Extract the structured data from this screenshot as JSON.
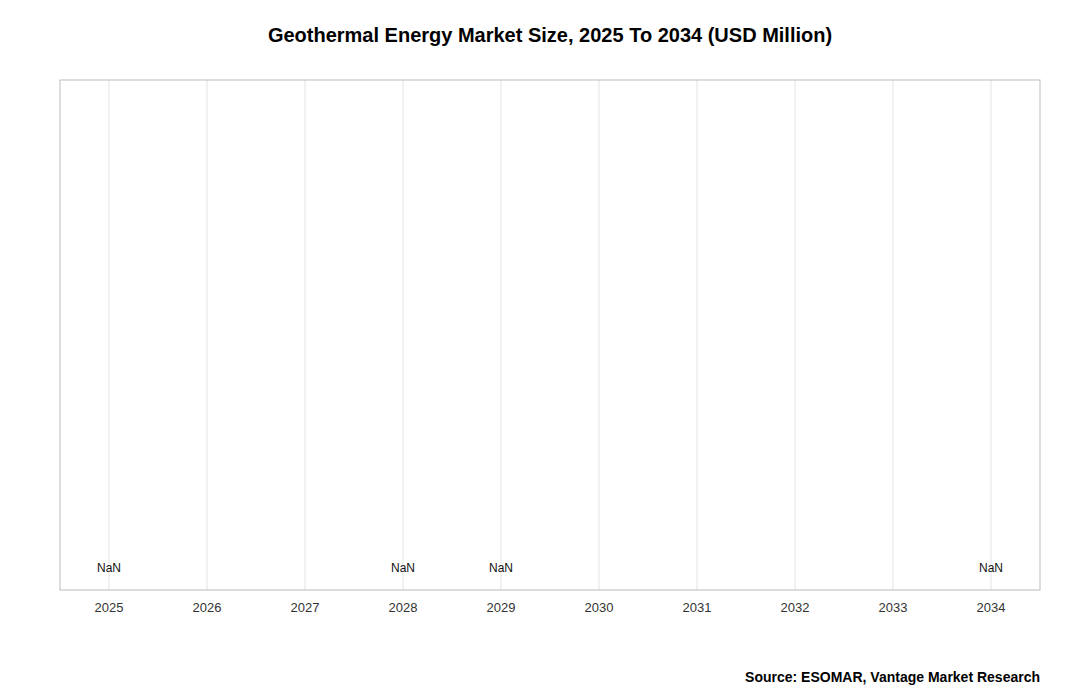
{
  "chart_data": {
    "type": "line",
    "title": "Geothermal Energy Market Size, 2025 To 2034 (USD Million)",
    "source": "Source: ESOMAR, Vantage Market Research",
    "xlim": [
      2024.5,
      2034.5
    ],
    "xticks": [
      2025,
      2026,
      2027,
      2028,
      2029,
      2030,
      2031,
      2032,
      2033,
      2034
    ],
    "ylim": [
      0,
      1
    ],
    "grid": true,
    "tick_labels": "x",
    "annotations": [
      {
        "x": 2025,
        "text": "NaN"
      },
      {
        "x": 2028,
        "text": "NaN"
      },
      {
        "x": 2029,
        "text": "NaN"
      },
      {
        "x": 2034,
        "text": "NaN"
      }
    ]
  }
}
